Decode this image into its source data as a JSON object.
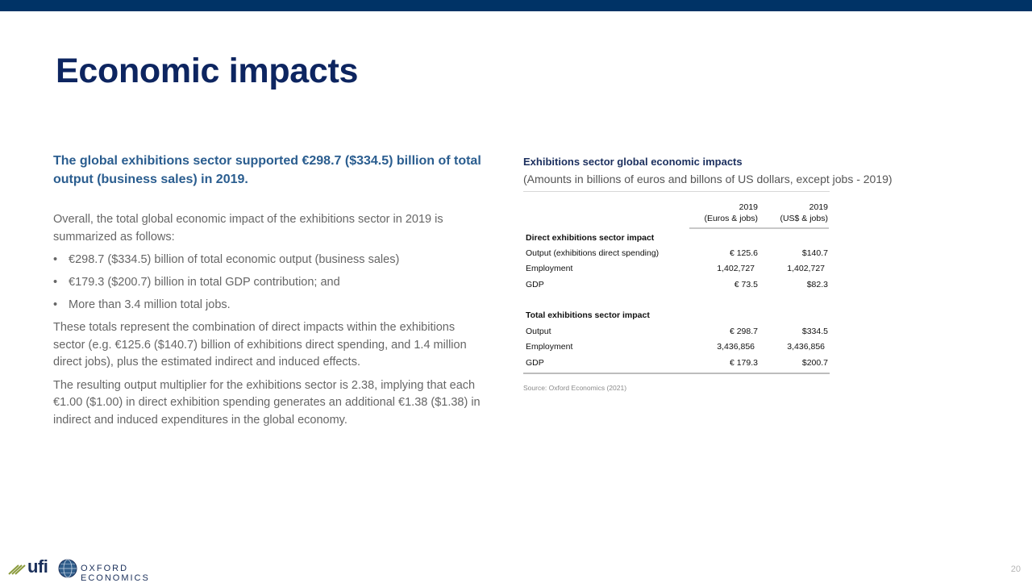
{
  "slide": {
    "title": "Economic impacts",
    "page_number": "20",
    "accent_color": "#003366"
  },
  "lead": "The global exhibitions sector supported €298.7 ($334.5) billion of total output (business sales) in 2019.",
  "body": {
    "intro": "Overall, the total global economic impact of the exhibitions sector in 2019 is summarized as follows:",
    "bullet_char": "•",
    "bullets": [
      "€298.7 ($334.5) billion of total economic output (business sales)",
      "€179.3 ($200.7) billion in total GDP contribution; and",
      "More than 3.4 million total jobs."
    ],
    "para1": "These totals represent the combination of direct impacts within the exhibitions sector (e.g. €125.6 ($140.7) billion of exhibitions direct spending, and 1.4 million direct jobs), plus the estimated indirect and induced effects.",
    "para2": "The resulting output multiplier for the exhibitions sector is 2.38, implying that each €1.00 ($1.00) in direct exhibition spending generates an additional €1.38 ($1.38) in indirect and induced expenditures in the global economy."
  },
  "table": {
    "title": "Exhibitions sector global economic impacts",
    "subtitle": "(Amounts in billions of euros and billons of US dollars, except jobs - 2019)",
    "col1": {
      "year": "2019",
      "unit": "(Euros  & jobs)"
    },
    "col2": {
      "year": "2019",
      "unit": "(US$ & jobs)"
    },
    "direct": {
      "heading": "Direct exhibitions sector impact",
      "rows": [
        {
          "label": "Output (exhibitions direct spending)",
          "eur": "€ 125.6",
          "usd": "$140.7"
        },
        {
          "label": "Employment",
          "eur": "1,402,727",
          "usd": "1,402,727"
        },
        {
          "label": "GDP",
          "eur": "€ 73.5",
          "usd": "$82.3"
        }
      ]
    },
    "total": {
      "heading": "Total exhibitions sector impact",
      "rows": [
        {
          "label": "Output",
          "eur": "€ 298.7",
          "usd": "$334.5"
        },
        {
          "label": "Employment",
          "eur": "3,436,856",
          "usd": "3,436,856"
        },
        {
          "label": "GDP",
          "eur": "€ 179.3",
          "usd": "$200.7"
        }
      ]
    },
    "source": "Source: Oxford Economics (2021)"
  },
  "footer": {
    "ufi_logo_text": "ufi",
    "oxford_logo_text": "OXFORD ECONOMICS"
  }
}
